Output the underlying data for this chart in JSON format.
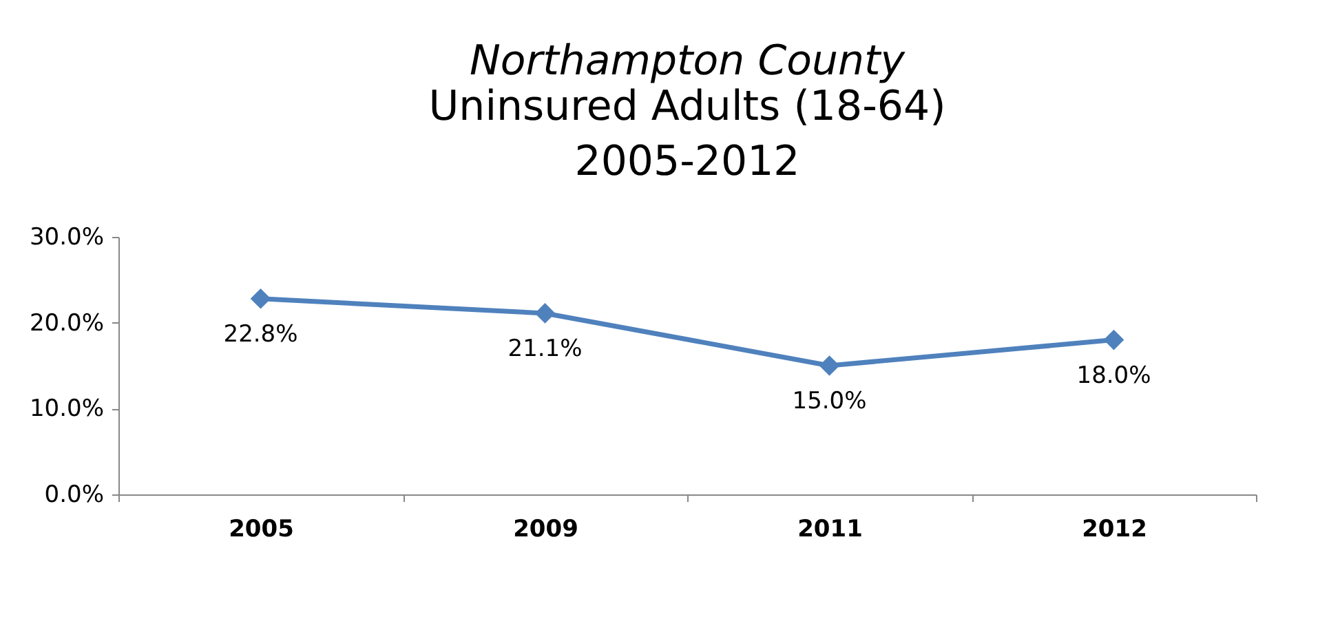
{
  "chart_data": {
    "type": "line",
    "title": "Northampton County",
    "subtitle": "Uninsured Adults (18-64)\n2005-2012",
    "categories": [
      "2005",
      "2009",
      "2011",
      "2012"
    ],
    "series": [
      {
        "color": "#4f81bd",
        "values": [
          22.8,
          21.1,
          15.0,
          18.0
        ],
        "value_labels": [
          "22.8%",
          "21.1%",
          "15.0%",
          "18.0%"
        ]
      }
    ],
    "ylim": [
      0,
      30
    ],
    "yticks": [
      {
        "value": 0,
        "label": "0.0%"
      },
      {
        "value": 10,
        "label": "10.0%"
      },
      {
        "value": 20,
        "label": "20.0%"
      },
      {
        "value": 30,
        "label": "30.0%"
      }
    ],
    "marker": "diamond",
    "line_style": "solid"
  }
}
